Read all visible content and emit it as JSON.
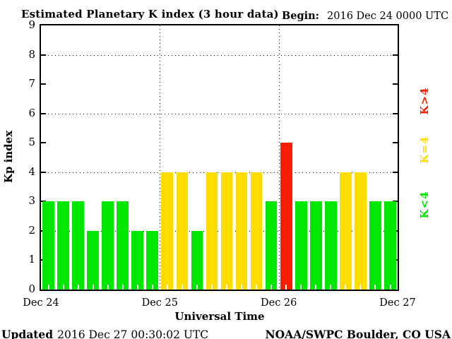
{
  "header": {
    "title": "Estimated Planetary K index (3 hour data)",
    "begin_label": "Begin:",
    "begin_value": "2016 Dec 24 0000 UTC"
  },
  "footer": {
    "updated_label": "Updated",
    "updated_value": "2016 Dec 27 00:30:02 UTC",
    "credit": "NOAA/SWPC Boulder, CO USA"
  },
  "chart_data": {
    "type": "bar",
    "title": "Estimated Planetary K index (3 hour data)",
    "xlabel": "Universal Time",
    "ylabel": "Kp index",
    "ylim": [
      0,
      9
    ],
    "y_ticks": [
      0,
      1,
      2,
      3,
      4,
      5,
      6,
      7,
      8,
      9
    ],
    "grid_y_values": [
      2,
      4,
      6,
      8
    ],
    "grid_style": "dotted horizontal lines at even Kp values, dotted vertical lines at day boundaries",
    "x_tick_labels": [
      "Dec 24",
      "Dec 25",
      "Dec 26",
      "Dec 27"
    ],
    "bars_per_day": 8,
    "bar_interval_hours": 3,
    "values": [
      3,
      3,
      3,
      2,
      3,
      3,
      2,
      2,
      4,
      4,
      2,
      4,
      4,
      4,
      4,
      3,
      5,
      3,
      3,
      3,
      4,
      4,
      3,
      3
    ],
    "colors": {
      "k_lt_4": "#00e800",
      "k_eq_4": "#ffdd00",
      "k_gt_4": "#fa1e00"
    },
    "legend": [
      {
        "label": "K>4",
        "color_key": "k_gt_4"
      },
      {
        "label": "K=4",
        "color_key": "k_eq_4"
      },
      {
        "label": "K<4",
        "color_key": "k_lt_4"
      }
    ],
    "legend_position": "right side, labels rotated 90 degrees"
  }
}
